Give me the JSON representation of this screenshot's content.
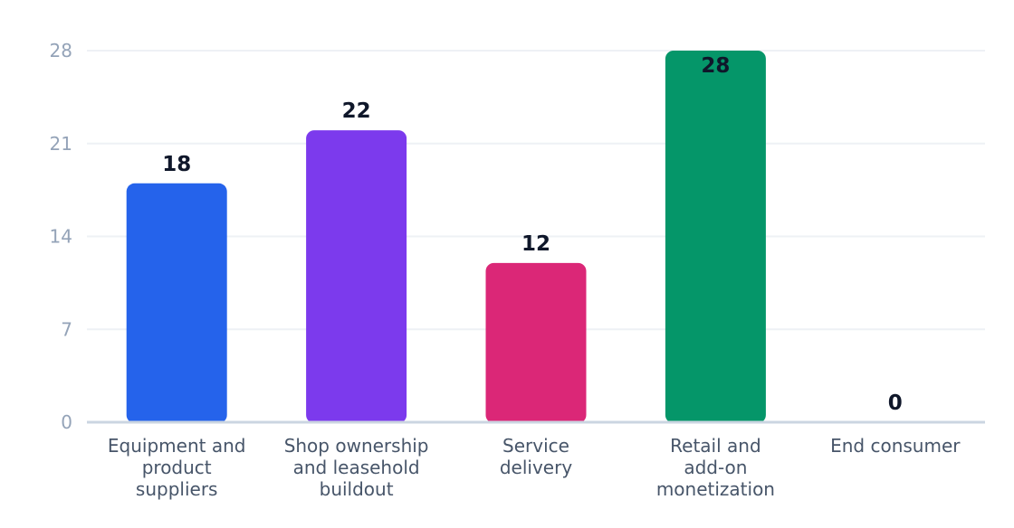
{
  "chart_data": {
    "type": "bar",
    "title": "",
    "xlabel": "",
    "ylabel": "",
    "categories": [
      [
        "Equipment and",
        "product",
        "suppliers"
      ],
      [
        "Shop ownership",
        "and leasehold",
        "buildout"
      ],
      [
        "Service",
        "delivery"
      ],
      [
        "Retail and",
        "add-on",
        "monetization"
      ],
      [
        "End consumer"
      ]
    ],
    "values": [
      18,
      22,
      12,
      28,
      0
    ],
    "value_labels": [
      "18",
      "22",
      "12",
      "28",
      "0"
    ],
    "colors": [
      "#2563eb",
      "#7c3aed",
      "#db2777",
      "#059669",
      "#94a3b8"
    ],
    "ylim": [
      0,
      28
    ],
    "yticks": [
      0,
      7,
      14,
      21,
      28
    ],
    "ytick_labels": [
      "0",
      "7",
      "14",
      "21",
      "28"
    ],
    "grid": true,
    "legend": "none"
  }
}
